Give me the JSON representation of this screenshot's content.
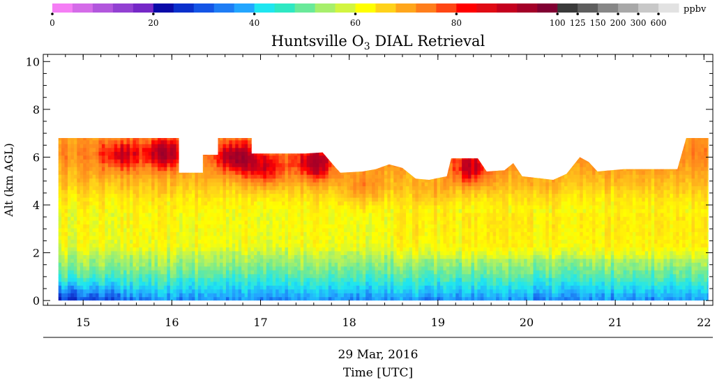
{
  "chart_data": {
    "type": "heatmap",
    "title": "Huntsville O",
    "title_subscript": "3",
    "title_suffix": " DIAL Retrieval",
    "xlabel": "Time [UTC]",
    "date_label": "29 Mar, 2016",
    "ylabel": "Alt (km AGL)",
    "x_ticks": [
      "15",
      "16",
      "17",
      "18",
      "19",
      "20",
      "21",
      "22"
    ],
    "y_ticks": [
      "0",
      "2",
      "4",
      "6",
      "8",
      "10"
    ],
    "xlim": [
      14.55,
      22.1
    ],
    "ylim": [
      -0.2,
      10.3
    ],
    "x_range": [
      14.72,
      22.05
    ],
    "colorbar": {
      "unit": "ppbv",
      "tick_labels": [
        "0",
        "20",
        "40",
        "60",
        "80",
        "100",
        "125",
        "150",
        "200",
        "300",
        "600"
      ],
      "colors": [
        "#f57ef5",
        "#d46ce8",
        "#b257dd",
        "#9241d2",
        "#7528c7",
        "#0a0aa8",
        "#0a30cc",
        "#1455e6",
        "#1e7df5",
        "#23a6ff",
        "#1ee6f0",
        "#2ee8c3",
        "#6ae99a",
        "#a7ef6c",
        "#d2f540",
        "#ffff00",
        "#ffd21a",
        "#ffa61c",
        "#ff7e1c",
        "#ff4614",
        "#ff0000",
        "#e00a14",
        "#c4001e",
        "#a30028",
        "#800032",
        "#3a3a3a",
        "#5e5e5e",
        "#878787",
        "#a8a8a8",
        "#c8c8c8",
        "#e2e2e2"
      ]
    },
    "top_boundary": [
      [
        14.72,
        6.8
      ],
      [
        16.08,
        6.8
      ],
      [
        16.08,
        5.35
      ],
      [
        16.35,
        5.35
      ],
      [
        16.35,
        6.1
      ],
      [
        16.52,
        6.1
      ],
      [
        16.52,
        6.8
      ],
      [
        16.9,
        6.8
      ],
      [
        16.9,
        6.15
      ],
      [
        17.5,
        6.15
      ],
      [
        17.7,
        6.2
      ],
      [
        17.85,
        5.55
      ],
      [
        17.9,
        5.35
      ],
      [
        18.15,
        5.4
      ],
      [
        18.3,
        5.5
      ],
      [
        18.45,
        5.7
      ],
      [
        18.6,
        5.55
      ],
      [
        18.75,
        5.1
      ],
      [
        18.9,
        5.05
      ],
      [
        19.1,
        5.2
      ],
      [
        19.15,
        5.95
      ],
      [
        19.45,
        5.95
      ],
      [
        19.55,
        5.4
      ],
      [
        19.75,
        5.45
      ],
      [
        19.85,
        5.75
      ],
      [
        19.95,
        5.2
      ],
      [
        20.3,
        5.05
      ],
      [
        20.45,
        5.3
      ],
      [
        20.6,
        6.0
      ],
      [
        20.7,
        5.8
      ],
      [
        20.8,
        5.4
      ],
      [
        21.1,
        5.5
      ],
      [
        21.7,
        5.5
      ],
      [
        21.8,
        6.8
      ],
      [
        22.05,
        6.8
      ]
    ],
    "vertical_profile_ppbv": [
      [
        0,
        33
      ],
      [
        0.4,
        38
      ],
      [
        0.9,
        44
      ],
      [
        1.4,
        49
      ],
      [
        1.8,
        52
      ],
      [
        2.2,
        57
      ],
      [
        3.0,
        58
      ],
      [
        3.6,
        58
      ],
      [
        4.2,
        61
      ],
      [
        4.8,
        66
      ],
      [
        5.4,
        70
      ],
      [
        6.0,
        74
      ],
      [
        6.8,
        72
      ]
    ],
    "enhancements": [
      {
        "x": 15.4,
        "y": 6.0,
        "ppbv": 80
      },
      {
        "x": 15.9,
        "y": 6.1,
        "ppbv": 84
      },
      {
        "x": 16.7,
        "y": 5.9,
        "ppbv": 87
      },
      {
        "x": 17.05,
        "y": 5.4,
        "ppbv": 83
      },
      {
        "x": 17.6,
        "y": 5.6,
        "ppbv": 86
      },
      {
        "x": 18.15,
        "y": 4.6,
        "ppbv": 76
      },
      {
        "x": 19.35,
        "y": 5.4,
        "ppbv": 84
      },
      {
        "x": 18.9,
        "y": 4.4,
        "ppbv": 72
      },
      {
        "x": 20.2,
        "y": 4.6,
        "ppbv": 70
      }
    ]
  }
}
